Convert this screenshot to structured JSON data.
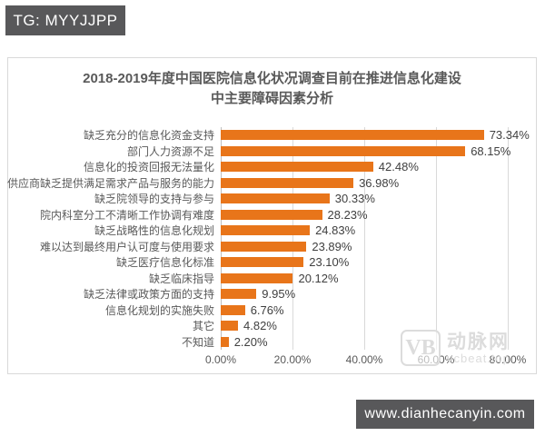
{
  "badges": {
    "telegram": "TG: MYYJJPP",
    "website": "www.dianhecanyin.com"
  },
  "watermark": {
    "logo": "VB",
    "name": "动脉网",
    "domain": "vcbeat.top"
  },
  "chart_data": {
    "type": "bar",
    "orientation": "horizontal",
    "title_line1": "2018-2019年度中国医院信息化状况调查目前在推进信息化建设",
    "title_line2": "中主要障碍因素分析",
    "categories": [
      "缺乏充分的信息化资金支持",
      "部门人力资源不足",
      "信息化的投资回报无法量化",
      "供应商缺乏提供满足需求产品与服务的能力",
      "缺乏院领导的支持与参与",
      "院内科室分工不清晰工作协调有难度",
      "缺乏战略性的信息化规划",
      "难以达到最终用户认可度与使用要求",
      "缺乏医疗信息化标准",
      "缺乏临床指导",
      "缺乏法律或政策方面的支持",
      "信息化规划的实施失败",
      "其它",
      "不知道"
    ],
    "values": [
      73.34,
      68.15,
      42.48,
      36.98,
      30.33,
      28.23,
      24.83,
      23.89,
      23.1,
      20.12,
      9.95,
      6.76,
      4.82,
      2.2
    ],
    "value_labels": [
      "73.34%",
      "68.15%",
      "42.48%",
      "36.98%",
      "30.33%",
      "28.23%",
      "24.83%",
      "23.89%",
      "23.10%",
      "20.12%",
      "9.95%",
      "6.76%",
      "4.82%",
      "2.20%"
    ],
    "x_ticks": [
      "0.00%",
      "20.00%",
      "40.00%",
      "60.00%",
      "80.00%"
    ],
    "x_tick_values": [
      0,
      20,
      40,
      60,
      80
    ],
    "xlim": [
      0,
      80
    ],
    "grid": true,
    "legend": "none",
    "bar_color": "#E8751A"
  },
  "colors": {
    "badge_background": "#58585A",
    "badge_text": "#FFFFFF",
    "bar": "#E8751A",
    "gridline": "#D9D9D9",
    "axis_line": "#BFBFBF",
    "title_text": "#595959",
    "label_text": "#595959",
    "value_text": "#404040",
    "watermark": "#DCDCDC",
    "card_border": "#D9D9D9"
  }
}
